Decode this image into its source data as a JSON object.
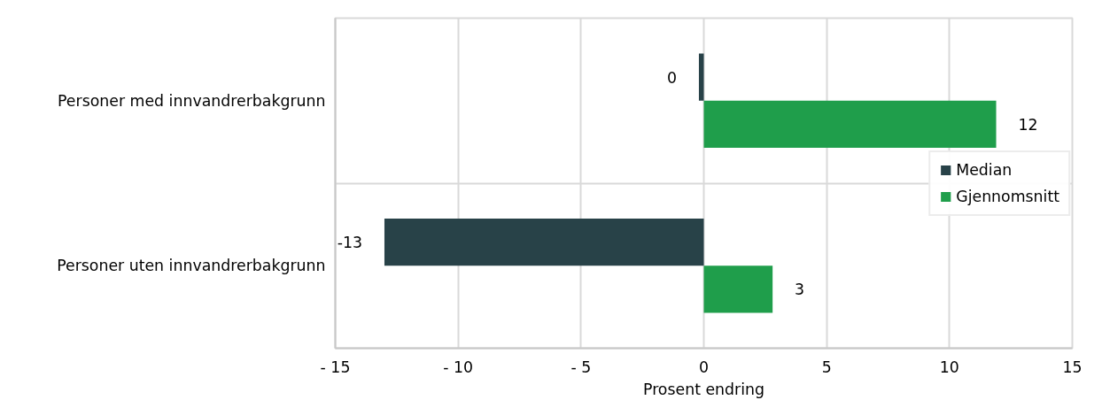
{
  "chart_data": {
    "type": "bar",
    "orientation": "horizontal",
    "xlabel": "Prosent endring",
    "categories": [
      "Personer med innvandrerbakgrunn",
      "Personer uten innvandrerbakgrunn"
    ],
    "series": [
      {
        "name": "Median",
        "color": "#284248",
        "values": [
          -0.2,
          -13.0
        ],
        "value_labels": [
          "0",
          "-13"
        ]
      },
      {
        "name": "Gjennomsnitt",
        "color": "#1f9e4b",
        "values": [
          11.9,
          2.8
        ],
        "value_labels": [
          "12",
          "3"
        ]
      }
    ],
    "xlim": [
      -15,
      15
    ],
    "xticks": [
      {
        "value": -15,
        "label": "- 15"
      },
      {
        "value": -10,
        "label": "- 10"
      },
      {
        "value": -5,
        "label": "- 5"
      },
      0,
      5,
      10,
      15
    ],
    "grid": true,
    "legend": "right"
  }
}
